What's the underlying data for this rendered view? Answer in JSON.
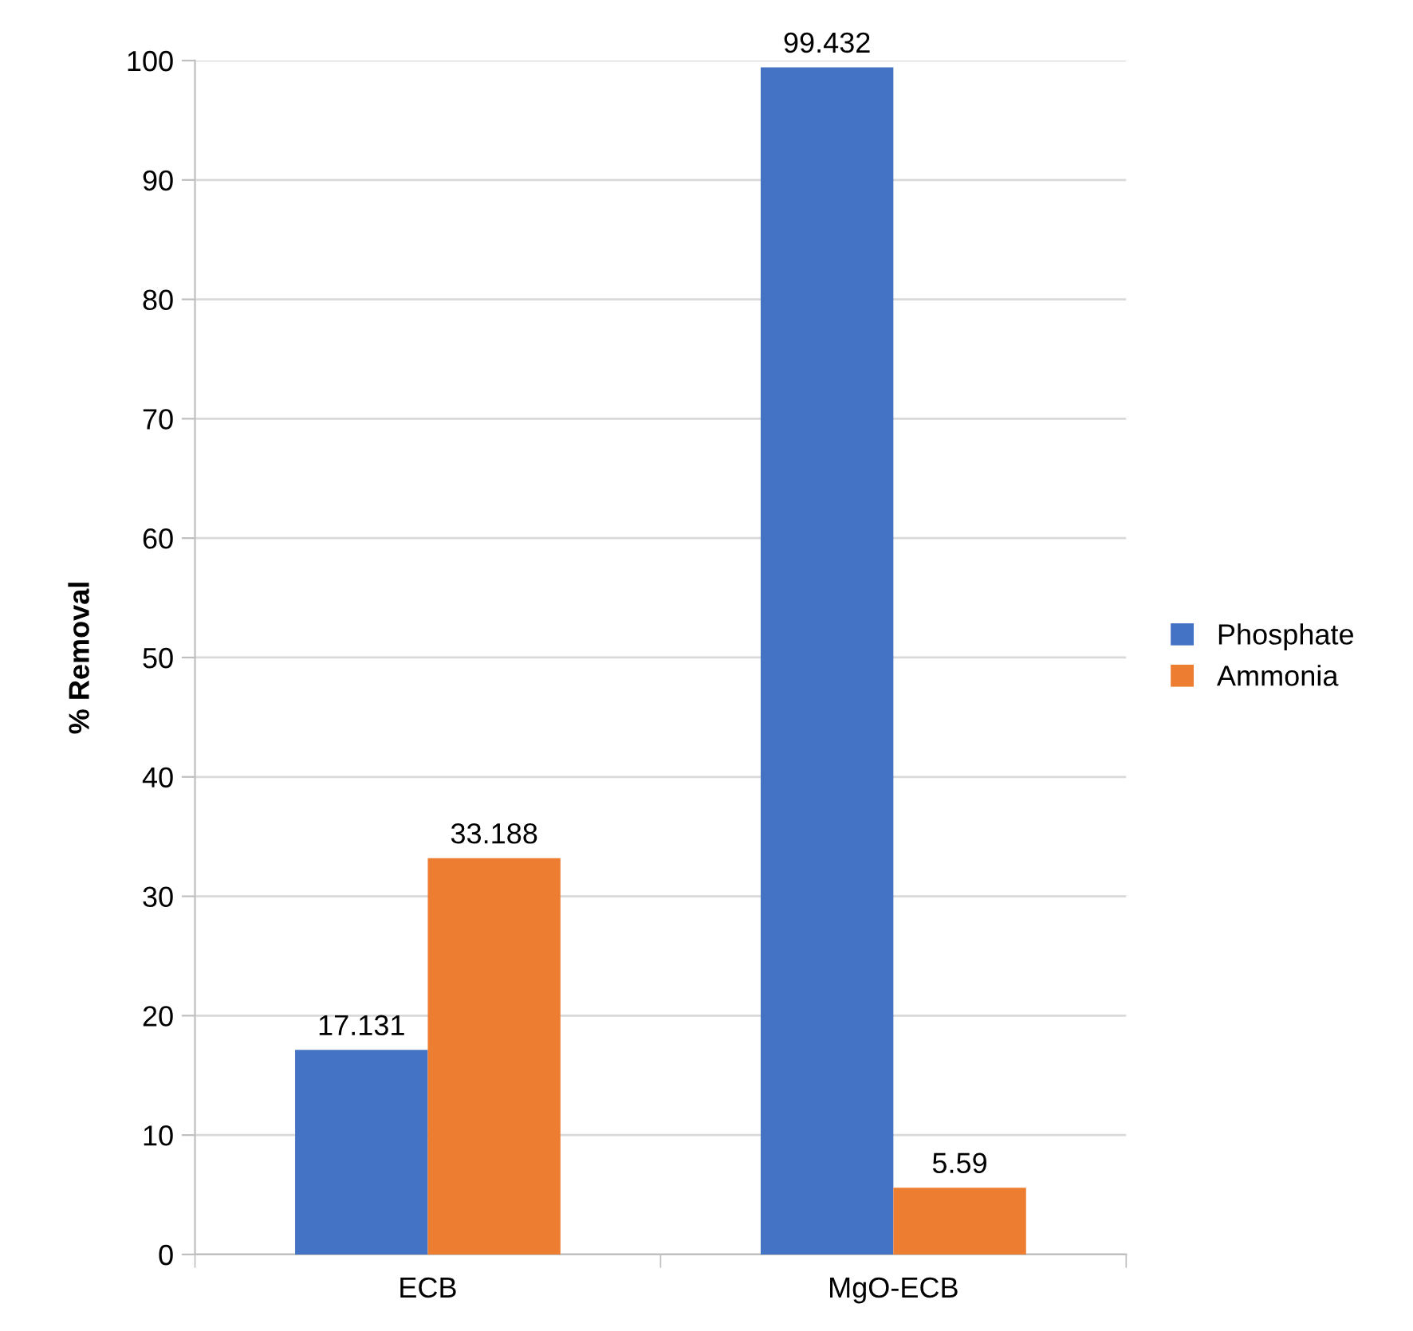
{
  "chart_data": {
    "type": "bar",
    "ylabel": "% Removal",
    "categories": [
      "ECB",
      "MgO-ECB"
    ],
    "series": [
      {
        "name": "Phosphate",
        "color": "#4472c4",
        "values": [
          17.131,
          99.432
        ]
      },
      {
        "name": "Ammonia",
        "color": "#ed7d31",
        "values": [
          33.188,
          5.59
        ]
      }
    ],
    "ylim": [
      0,
      100
    ],
    "yticks": [
      0,
      10,
      20,
      30,
      40,
      50,
      60,
      70,
      80,
      90,
      100
    ],
    "grid": "y",
    "legend": "right",
    "data_labels": true
  }
}
